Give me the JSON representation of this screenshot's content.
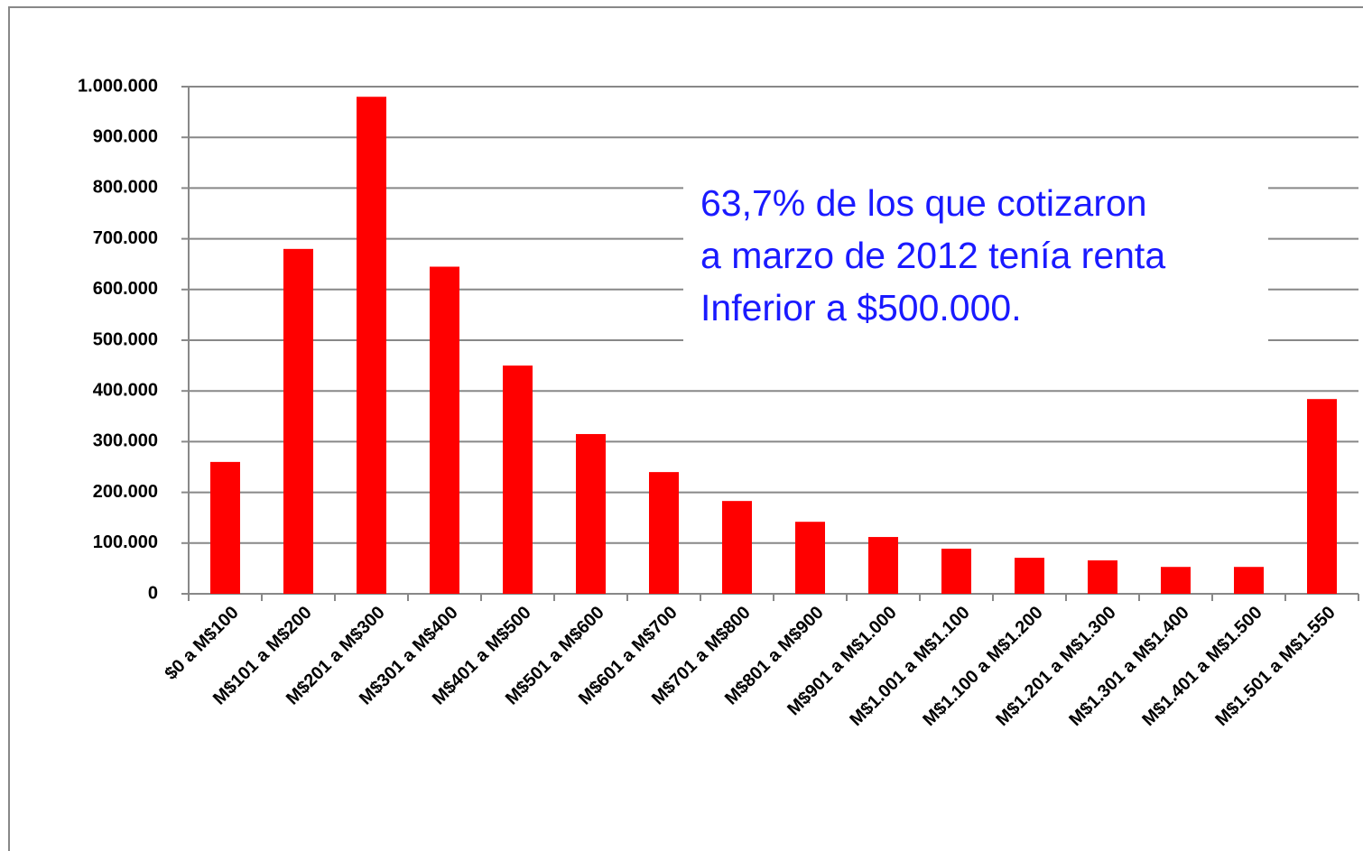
{
  "chart_data": {
    "type": "bar",
    "annotation": [
      "63,7% de los que cotizaron",
      "a marzo de 2012 tenía renta",
      "Inferior a $500.000."
    ],
    "categories": [
      "$0 a M$100",
      "M$101 a M$200",
      "M$201 a M$300",
      "M$301 a M$400",
      "M$401 a M$500",
      "M$501 a M$600",
      "M$601 a M$700",
      "M$701 a M$800",
      "M$801 a M$900",
      "M$901 a M$1.000",
      "M$1.001 a M$1.100",
      "M$1.100 a M$1.200",
      "M$1.201 a M$1.300",
      "M$1.301 a M$1.400",
      "M$1.401 a M$1.500",
      "M$1.501 a M$1.550"
    ],
    "values": [
      260000,
      680000,
      980000,
      645000,
      450000,
      315000,
      240000,
      183000,
      142000,
      112000,
      89000,
      71000,
      66000,
      53000,
      53000,
      384000
    ],
    "color": "#ff0000",
    "annotation_color": "#1a1aff",
    "ylim": [
      0,
      1000000
    ],
    "yticks": [
      0,
      {
        "value": 100000,
        "label": "100.000"
      },
      {
        "value": 200000,
        "label": "200.000"
      },
      {
        "value": 300000,
        "label": "300.000"
      },
      {
        "value": 400000,
        "label": "400.000"
      },
      {
        "value": 500000,
        "label": "500.000"
      },
      {
        "value": 600000,
        "label": "600.000"
      },
      {
        "value": 700000,
        "label": "700.000"
      },
      {
        "value": 800000,
        "label": "800.000"
      },
      {
        "value": 900000,
        "label": "900.000"
      },
      {
        "value": 1000000,
        "label": "1.000.000"
      }
    ],
    "grid": true
  }
}
